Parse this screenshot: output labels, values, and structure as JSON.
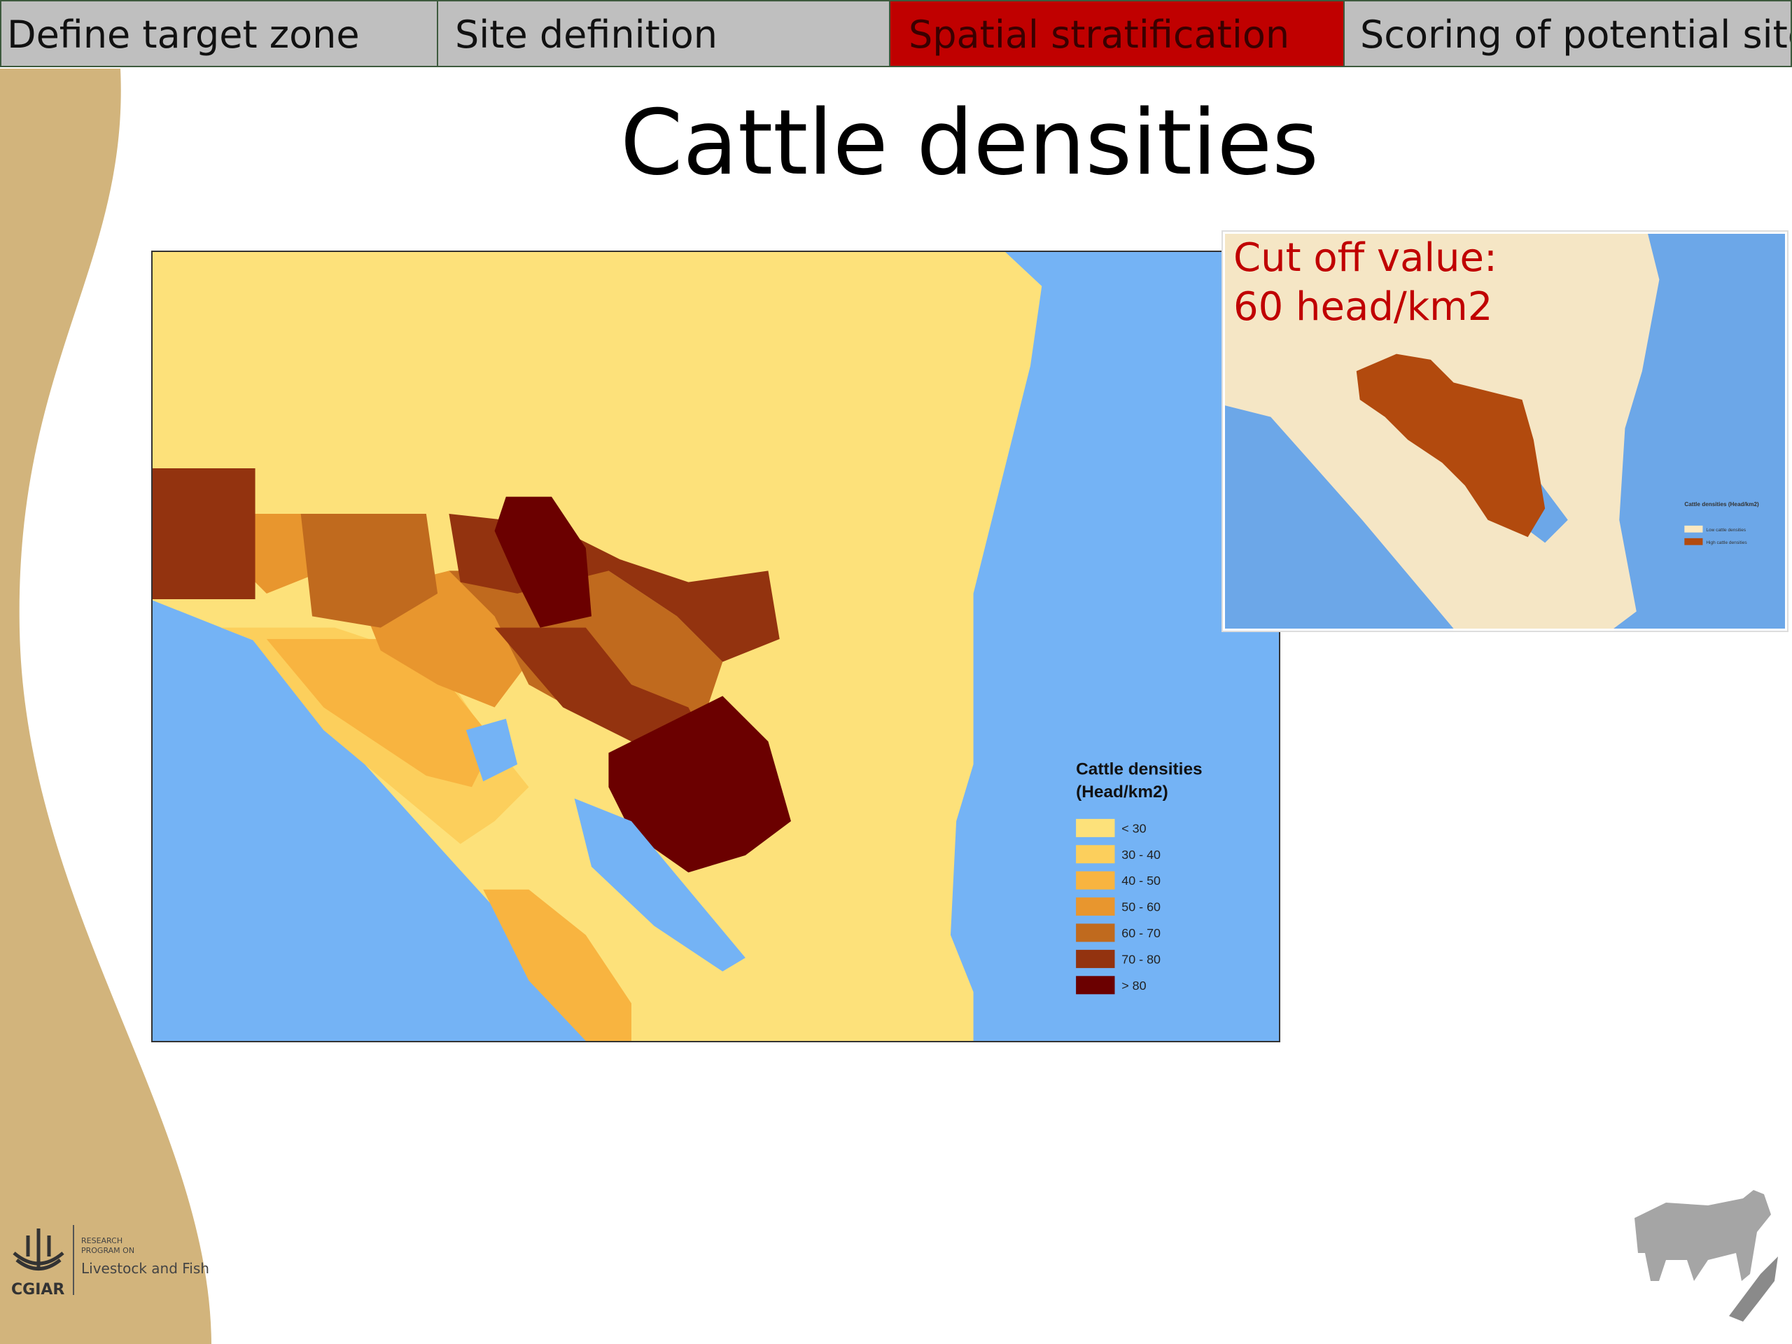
{
  "tabs": [
    {
      "label": "Define target zone",
      "active": false
    },
    {
      "label": "Site definition",
      "active": false
    },
    {
      "label": "Spatial stratification",
      "active": true
    },
    {
      "label": "Scoring of potential sites",
      "active": false
    }
  ],
  "title": "Cattle densities",
  "map": {
    "legend": {
      "title": "Cattle densities",
      "subtitle": "(Head/km2)",
      "items": [
        {
          "label": "< 30",
          "color": "#fde17a"
        },
        {
          "label": "30 - 40",
          "color": "#fccf5c"
        },
        {
          "label": "40 - 50",
          "color": "#f8b440"
        },
        {
          "label": "50 - 60",
          "color": "#e8962e"
        },
        {
          "label": "60 - 70",
          "color": "#c06a1e"
        },
        {
          "label": "70 - 80",
          "color": "#93330f"
        },
        {
          "label": "> 80",
          "color": "#6b0000"
        }
      ]
    }
  },
  "inset": {
    "cutoff": [
      "Cut off value:",
      "60 head/km2"
    ],
    "legend": {
      "title": "Cattle densities (Head/km2)",
      "items": [
        {
          "label": "Low cattle densities",
          "color": "#fbe8c0"
        },
        {
          "label": "High cattle densities",
          "color": "#b24a0e"
        }
      ]
    }
  },
  "logo": {
    "name": "CGIAR",
    "program": [
      "RESEARCH",
      "PROGRAM ON"
    ],
    "title": "Livestock and Fish"
  }
}
